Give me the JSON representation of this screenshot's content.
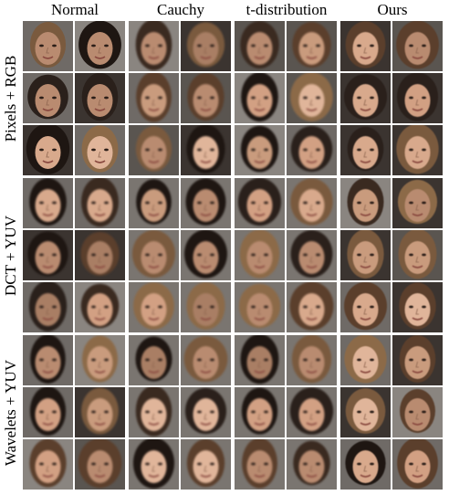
{
  "columns": [
    "Normal",
    "Cauchy",
    "t-distribution",
    "Ours"
  ],
  "rows": [
    "Pixels + RGB",
    "DCT + YUV",
    "Wavelets + YUV"
  ],
  "palette": {
    "bg": [
      "#3b3430",
      "#6f6a66",
      "#8a8580",
      "#5a5550"
    ],
    "skin": [
      "#d8a98c",
      "#c99b7d",
      "#b98b70",
      "#e0b59a",
      "#a97e64",
      "#d2a083"
    ],
    "hair": [
      "#1e1612",
      "#3a2a20",
      "#5b3f2c",
      "#7a5a3e",
      "#2a201b",
      "#8c6a48"
    ]
  },
  "icons": [
    "face-sample-icon"
  ]
}
